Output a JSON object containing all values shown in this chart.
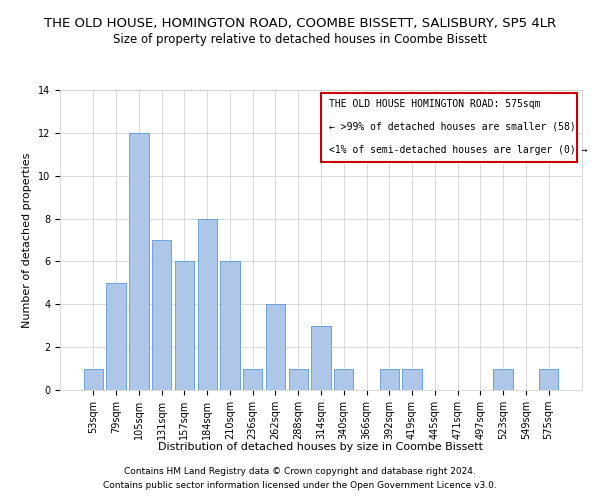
{
  "title": "THE OLD HOUSE, HOMINGTON ROAD, COOMBE BISSETT, SALISBURY, SP5 4LR",
  "subtitle": "Size of property relative to detached houses in Coombe Bissett",
  "xlabel": "Distribution of detached houses by size in Coombe Bissett",
  "ylabel": "Number of detached properties",
  "categories": [
    "53sqm",
    "79sqm",
    "105sqm",
    "131sqm",
    "157sqm",
    "184sqm",
    "210sqm",
    "236sqm",
    "262sqm",
    "288sqm",
    "314sqm",
    "340sqm",
    "366sqm",
    "392sqm",
    "419sqm",
    "445sqm",
    "471sqm",
    "497sqm",
    "523sqm",
    "549sqm",
    "575sqm"
  ],
  "values": [
    1,
    5,
    12,
    7,
    6,
    8,
    6,
    1,
    4,
    1,
    3,
    1,
    0,
    1,
    1,
    0,
    0,
    0,
    1,
    0,
    1
  ],
  "highlight_index": 20,
  "bar_color": "#aec6e8",
  "bar_edge_color": "#5b9bd5",
  "legend_box_color": "#cc0000",
  "legend_text_line1": "THE OLD HOUSE HOMINGTON ROAD: 575sqm",
  "legend_text_line2": "← >99% of detached houses are smaller (58)",
  "legend_text_line3": "<1% of semi-detached houses are larger (0) →",
  "ylim": [
    0,
    14
  ],
  "yticks": [
    0,
    2,
    4,
    6,
    8,
    10,
    12,
    14
  ],
  "footnote1": "Contains HM Land Registry data © Crown copyright and database right 2024.",
  "footnote2": "Contains public sector information licensed under the Open Government Licence v3.0.",
  "background_color": "#ffffff",
  "grid_color": "#cccccc",
  "title_fontsize": 9.5,
  "subtitle_fontsize": 8.5,
  "axis_label_fontsize": 8,
  "tick_fontsize": 7,
  "legend_fontsize": 7,
  "footnote_fontsize": 6.5
}
